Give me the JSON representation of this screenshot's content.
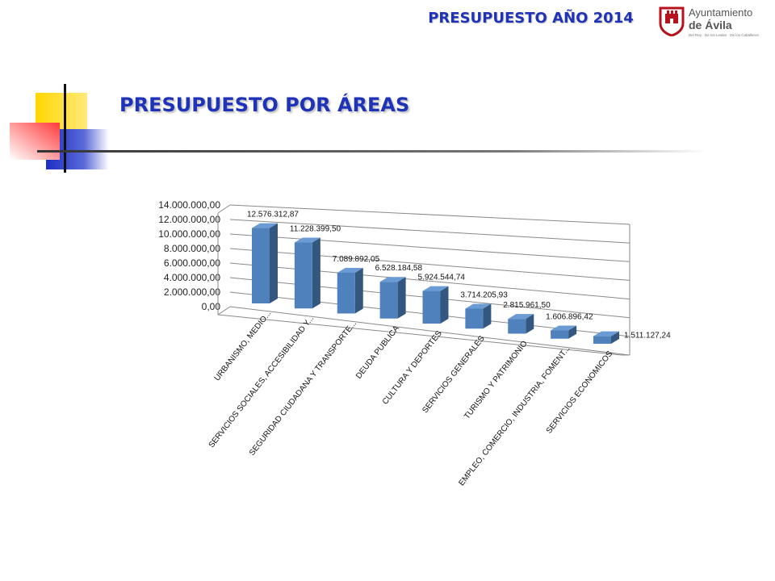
{
  "header": {
    "title": "PRESUPUESTO AÑO 2014"
  },
  "logo": {
    "name_line1": "Ayuntamiento",
    "name_line2": "de Ávila",
    "tagline": "Del Rey · De los Leales · De los Caballeros"
  },
  "section": {
    "title": "PRESUPUESTO POR ÁREAS"
  },
  "colors": {
    "title": "#1f33b8",
    "bar_front": "#4f81bd",
    "bar_side": "#34577f",
    "bar_top": "#6a9bd4"
  },
  "chart_data": {
    "type": "bar",
    "title": "",
    "xlabel": "",
    "ylabel": "",
    "ylim": [
      0,
      14000000
    ],
    "y_ticks": [
      "0,00",
      "2.000.000,00",
      "4.000.000,00",
      "6.000.000,00",
      "8.000.000,00",
      "10.000.000,00",
      "12.000.000,00",
      "14.000.000,00"
    ],
    "grid": true,
    "categories": [
      "URBANISMO, MEDIO...",
      "SERVICIOS SOCIALES, ACCESIBILIDAD Y...",
      "SEGURIDAD CIUDADANA Y TRANSPORTE...",
      "DEUDA PUBLICA",
      "CULTURA Y DEPORTES",
      "SERVICIOS GENERALES",
      "TURISMO Y PATRIMONIO",
      "EMPLEO, COMERCIO, INDUSTRIA, FOMENT...",
      "SERVICIOS ECONOMICOS"
    ],
    "values": [
      12576312.87,
      11228399.5,
      7089892.05,
      6528184.58,
      5924544.74,
      3714205.93,
      2815961.5,
      1606896.42,
      1511127.24
    ],
    "value_labels": [
      "12.576.312,87",
      "11.228.399,50",
      "7.089.892,05",
      "6.528.184,58",
      "5.924.544,74",
      "3.714.205,93",
      "2.815.961,50",
      "1.606.896,42",
      "1.511.127,24"
    ]
  }
}
